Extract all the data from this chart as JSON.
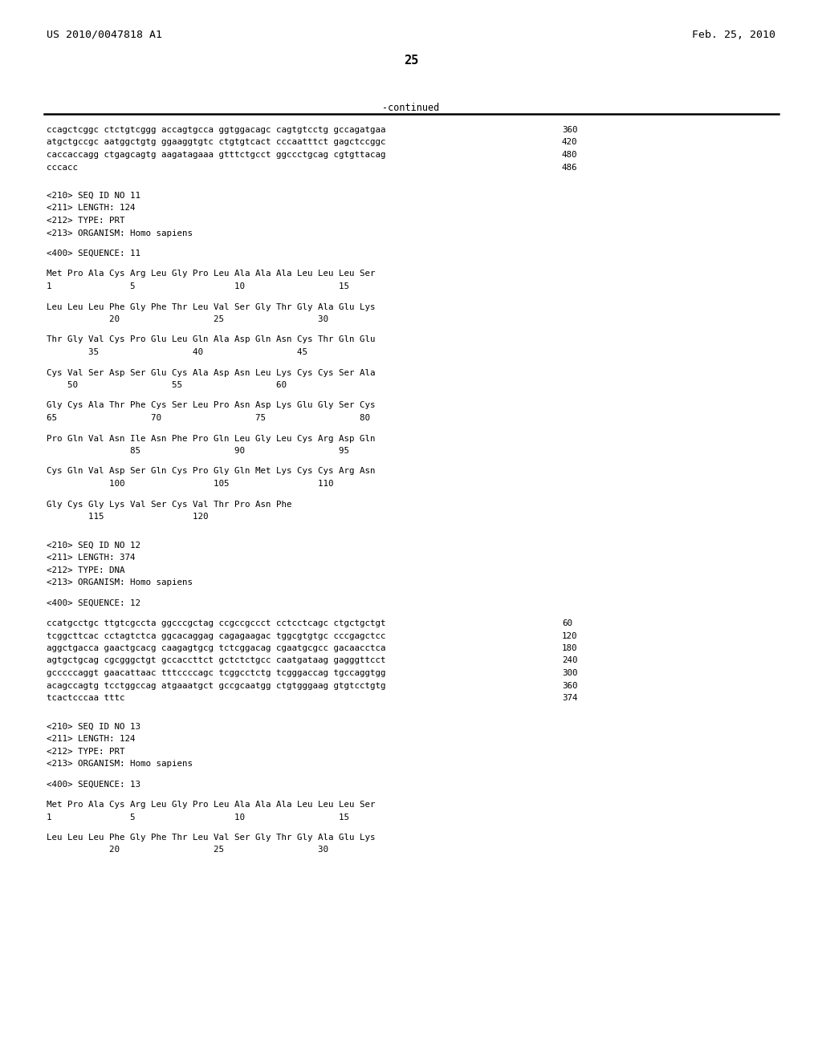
{
  "header_left": "US 2010/0047818 A1",
  "header_right": "Feb. 25, 2010",
  "page_number": "25",
  "continued_label": "-continued",
  "background_color": "#ffffff",
  "text_color": "#000000",
  "lines": [
    {
      "text": "ccagctcggc ctctgtcggg accagtgcca ggtggacagc cagtgtcctg gccagatgaa",
      "num": "360",
      "type": "seq"
    },
    {
      "text": "atgctgccgc aatggctgtg ggaaggtgtc ctgtgtcact cccaatttct gagctccggc",
      "num": "420",
      "type": "seq"
    },
    {
      "text": "caccaccagg ctgagcagtg aagatagaaa gtttctgcct ggccctgcag cgtgttacag",
      "num": "480",
      "type": "seq"
    },
    {
      "text": "cccacc",
      "num": "486",
      "type": "seq"
    },
    {
      "text": "",
      "type": "blank"
    },
    {
      "text": "",
      "type": "blank"
    },
    {
      "text": "<210> SEQ ID NO 11",
      "type": "meta"
    },
    {
      "text": "<211> LENGTH: 124",
      "type": "meta"
    },
    {
      "text": "<212> TYPE: PRT",
      "type": "meta"
    },
    {
      "text": "<213> ORGANISM: Homo sapiens",
      "type": "meta"
    },
    {
      "text": "",
      "type": "blank"
    },
    {
      "text": "<400> SEQUENCE: 11",
      "type": "meta"
    },
    {
      "text": "",
      "type": "blank"
    },
    {
      "text": "Met Pro Ala Cys Arg Leu Gly Pro Leu Ala Ala Ala Leu Leu Leu Ser",
      "num": "",
      "type": "aa"
    },
    {
      "text": "1               5                   10                  15",
      "num": "",
      "type": "num"
    },
    {
      "text": "",
      "type": "blank"
    },
    {
      "text": "Leu Leu Leu Phe Gly Phe Thr Leu Val Ser Gly Thr Gly Ala Glu Lys",
      "num": "",
      "type": "aa"
    },
    {
      "text": "            20                  25                  30",
      "num": "",
      "type": "num"
    },
    {
      "text": "",
      "type": "blank"
    },
    {
      "text": "Thr Gly Val Cys Pro Glu Leu Gln Ala Asp Gln Asn Cys Thr Gln Glu",
      "num": "",
      "type": "aa"
    },
    {
      "text": "        35                  40                  45",
      "num": "",
      "type": "num"
    },
    {
      "text": "",
      "type": "blank"
    },
    {
      "text": "Cys Val Ser Asp Ser Glu Cys Ala Asp Asn Leu Lys Cys Cys Ser Ala",
      "num": "",
      "type": "aa"
    },
    {
      "text": "    50                  55                  60",
      "num": "",
      "type": "num"
    },
    {
      "text": "",
      "type": "blank"
    },
    {
      "text": "Gly Cys Ala Thr Phe Cys Ser Leu Pro Asn Asp Lys Glu Gly Ser Cys",
      "num": "",
      "type": "aa"
    },
    {
      "text": "65                  70                  75                  80",
      "num": "",
      "type": "num"
    },
    {
      "text": "",
      "type": "blank"
    },
    {
      "text": "Pro Gln Val Asn Ile Asn Phe Pro Gln Leu Gly Leu Cys Arg Asp Gln",
      "num": "",
      "type": "aa"
    },
    {
      "text": "                85                  90                  95",
      "num": "",
      "type": "num"
    },
    {
      "text": "",
      "type": "blank"
    },
    {
      "text": "Cys Gln Val Asp Ser Gln Cys Pro Gly Gln Met Lys Cys Cys Arg Asn",
      "num": "",
      "type": "aa"
    },
    {
      "text": "            100                 105                 110",
      "num": "",
      "type": "num"
    },
    {
      "text": "",
      "type": "blank"
    },
    {
      "text": "Gly Cys Gly Lys Val Ser Cys Val Thr Pro Asn Phe",
      "num": "",
      "type": "aa"
    },
    {
      "text": "        115                 120",
      "num": "",
      "type": "num"
    },
    {
      "text": "",
      "type": "blank"
    },
    {
      "text": "",
      "type": "blank"
    },
    {
      "text": "<210> SEQ ID NO 12",
      "type": "meta"
    },
    {
      "text": "<211> LENGTH: 374",
      "type": "meta"
    },
    {
      "text": "<212> TYPE: DNA",
      "type": "meta"
    },
    {
      "text": "<213> ORGANISM: Homo sapiens",
      "type": "meta"
    },
    {
      "text": "",
      "type": "blank"
    },
    {
      "text": "<400> SEQUENCE: 12",
      "type": "meta"
    },
    {
      "text": "",
      "type": "blank"
    },
    {
      "text": "ccatgcctgc ttgtcgccta ggcccgctag ccgccgccct cctcctcagc ctgctgctgt",
      "num": "60",
      "type": "seq"
    },
    {
      "text": "tcggcttcac cctagtctca ggcacaggag cagagaagac tggcgtgtgc cccgagctcc",
      "num": "120",
      "type": "seq"
    },
    {
      "text": "aggctgacca gaactgcacg caagagtgcg tctcggacag cgaatgcgcc gacaacctca",
      "num": "180",
      "type": "seq"
    },
    {
      "text": "agtgctgcag cgcgggctgt gccaccttct gctctctgcc caatgataag gagggttcct",
      "num": "240",
      "type": "seq"
    },
    {
      "text": "gcccccaggt gaacattaac tttccccagc tcggcctctg tcgggaccag tgccaggtgg",
      "num": "300",
      "type": "seq"
    },
    {
      "text": "acagccagtg tcctggccag atgaaatgct gccgcaatgg ctgtgggaag gtgtcctgtg",
      "num": "360",
      "type": "seq"
    },
    {
      "text": "tcactcccaa tttc",
      "num": "374",
      "type": "seq"
    },
    {
      "text": "",
      "type": "blank"
    },
    {
      "text": "",
      "type": "blank"
    },
    {
      "text": "<210> SEQ ID NO 13",
      "type": "meta"
    },
    {
      "text": "<211> LENGTH: 124",
      "type": "meta"
    },
    {
      "text": "<212> TYPE: PRT",
      "type": "meta"
    },
    {
      "text": "<213> ORGANISM: Homo sapiens",
      "type": "meta"
    },
    {
      "text": "",
      "type": "blank"
    },
    {
      "text": "<400> SEQUENCE: 13",
      "type": "meta"
    },
    {
      "text": "",
      "type": "blank"
    },
    {
      "text": "Met Pro Ala Cys Arg Leu Gly Pro Leu Ala Ala Ala Leu Leu Leu Ser",
      "num": "",
      "type": "aa"
    },
    {
      "text": "1               5                   10                  15",
      "num": "",
      "type": "num"
    },
    {
      "text": "",
      "type": "blank"
    },
    {
      "text": "Leu Leu Leu Phe Gly Phe Thr Leu Val Ser Gly Thr Gly Ala Glu Lys",
      "num": "",
      "type": "aa"
    },
    {
      "text": "            20                  25                  30",
      "num": "",
      "type": "num"
    }
  ]
}
